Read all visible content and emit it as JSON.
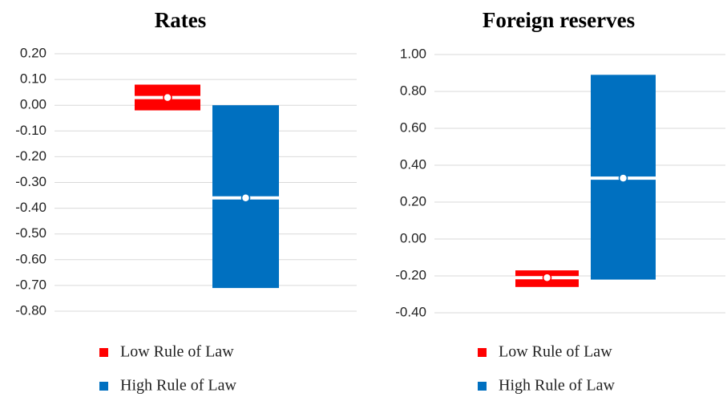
{
  "chart_data": [
    {
      "type": "range",
      "title": "Rates",
      "ylim": [
        -0.8,
        0.2
      ],
      "yticks": [
        {
          "value": -0.8,
          "label": "-0.80"
        },
        {
          "value": -0.7,
          "label": "-0.70"
        },
        {
          "value": -0.6,
          "label": "-0.60"
        },
        {
          "value": -0.5,
          "label": "-0.50"
        },
        {
          "value": -0.4,
          "label": "-0.40"
        },
        {
          "value": -0.3,
          "label": "-0.30"
        },
        {
          "value": -0.2,
          "label": "-0.20"
        },
        {
          "value": -0.1,
          "label": "-0.10"
        },
        {
          "value": 0,
          "label": "0.00"
        },
        {
          "value": 0.1,
          "label": "0.10"
        },
        {
          "value": 0.2,
          "label": "0.20"
        }
      ],
      "grid": true,
      "series": [
        {
          "name": "Low Rule of Law",
          "color": "#ff0000",
          "low": -0.02,
          "high": 0.08,
          "values": 0.03
        },
        {
          "name": "High Rule of Law",
          "color": "#0070c0",
          "low": -0.71,
          "high": 0.0,
          "values": -0.36
        }
      ]
    },
    {
      "type": "range",
      "title": "Foreign reserves",
      "ylim": [
        -0.4,
        1.0
      ],
      "yticks": [
        {
          "value": -0.4,
          "label": "-0.40"
        },
        {
          "value": -0.2,
          "label": "-0.20"
        },
        {
          "value": 0,
          "label": "0.00"
        },
        {
          "value": 0.2,
          "label": "0.20"
        },
        {
          "value": 0.4,
          "label": "0.40"
        },
        {
          "value": 0.6,
          "label": "0.60"
        },
        {
          "value": 0.8,
          "label": "0.80"
        },
        {
          "value": 1.0,
          "label": "1.00"
        }
      ],
      "grid": true,
      "series": [
        {
          "name": "Low Rule of Law",
          "color": "#ff0000",
          "low": -0.26,
          "high": -0.17,
          "values": -0.21
        },
        {
          "name": "High Rule of Law",
          "color": "#0070c0",
          "low": -0.22,
          "high": 0.89,
          "values": 0.33
        }
      ]
    }
  ]
}
